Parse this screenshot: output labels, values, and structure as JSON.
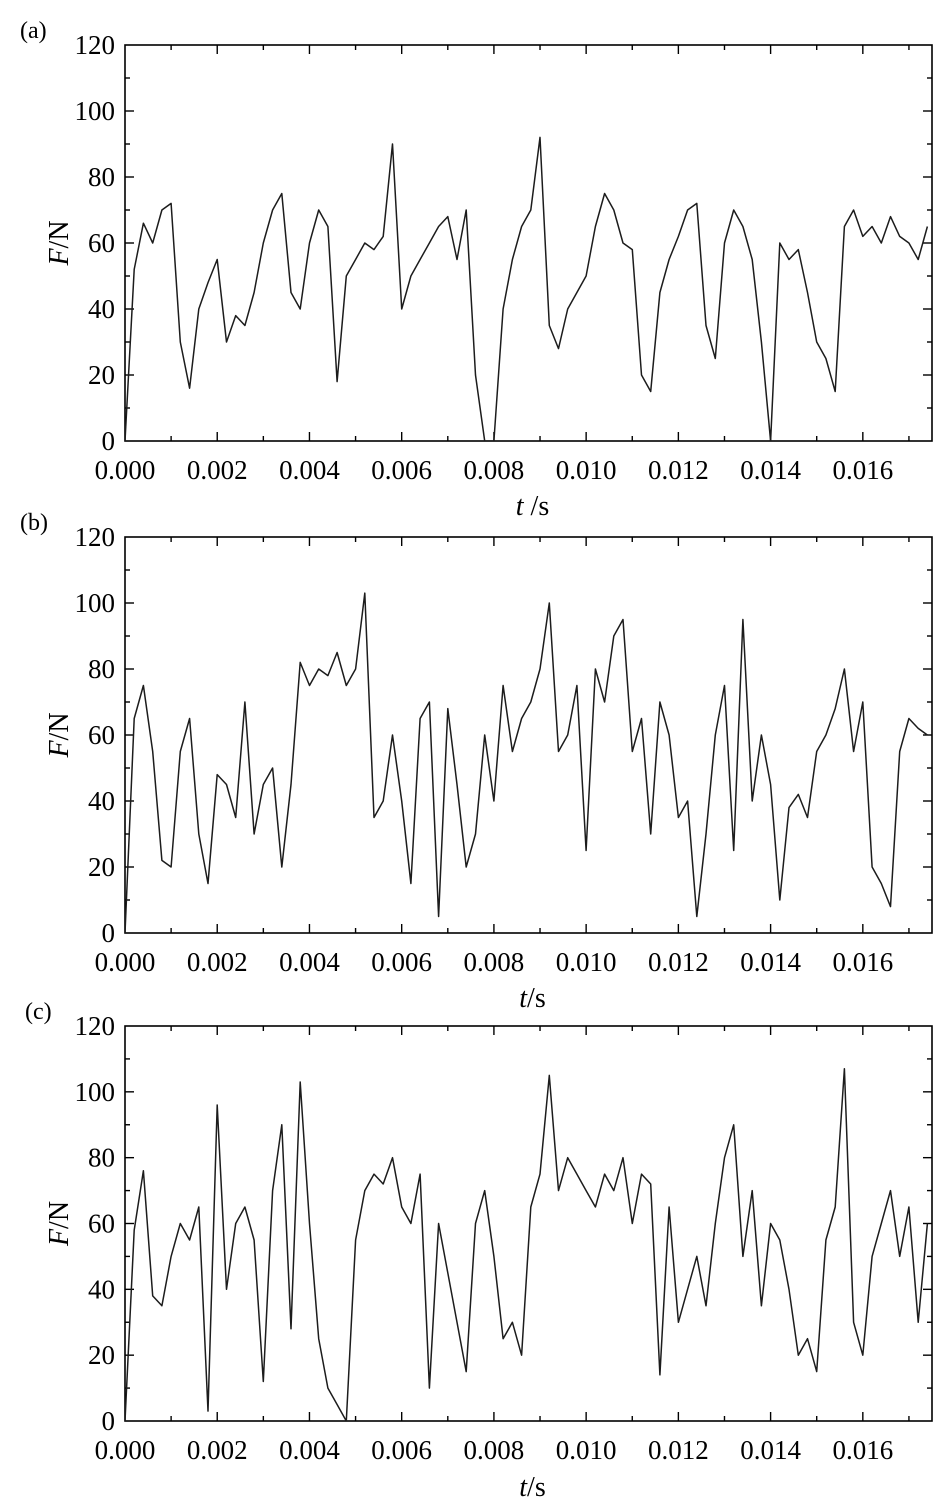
{
  "chart_data": [
    {
      "type": "line",
      "panel_label": "(a)",
      "xlabel_italic": "t",
      "xlabel_rest": " /s",
      "ylabel_italic": "F",
      "ylabel_rest": "/N",
      "xlim": [
        0,
        0.0175
      ],
      "ylim": [
        0,
        120
      ],
      "xticks": [
        "0.000",
        "0.002",
        "0.004",
        "0.006",
        "0.008",
        "0.010",
        "0.012",
        "0.014",
        "0.016"
      ],
      "yticks": [
        "0",
        "20",
        "40",
        "60",
        "80",
        "100",
        "120"
      ],
      "x": [
        0,
        0.0002,
        0.0004,
        0.0006,
        0.0008,
        0.001,
        0.0012,
        0.0014,
        0.0016,
        0.0018,
        0.002,
        0.0022,
        0.0024,
        0.0026,
        0.0028,
        0.003,
        0.0032,
        0.0034,
        0.0036,
        0.0038,
        0.004,
        0.0042,
        0.0044,
        0.0046,
        0.0048,
        0.005,
        0.0052,
        0.0054,
        0.0056,
        0.0058,
        0.006,
        0.0062,
        0.0064,
        0.0066,
        0.0068,
        0.007,
        0.0072,
        0.0074,
        0.0076,
        0.0078,
        0.008,
        0.0082,
        0.0084,
        0.0086,
        0.0088,
        0.009,
        0.0092,
        0.0094,
        0.0096,
        0.0098,
        0.01,
        0.0102,
        0.0104,
        0.0106,
        0.0108,
        0.011,
        0.0112,
        0.0114,
        0.0116,
        0.0118,
        0.012,
        0.0122,
        0.0124,
        0.0126,
        0.0128,
        0.013,
        0.0132,
        0.0134,
        0.0136,
        0.0138,
        0.014,
        0.0142,
        0.0144,
        0.0146,
        0.0148,
        0.015,
        0.0152,
        0.0154,
        0.0156,
        0.0158,
        0.016,
        0.0162,
        0.0164,
        0.0166,
        0.0168,
        0.017,
        0.0172,
        0.0174
      ],
      "values": [
        0,
        52,
        66,
        60,
        70,
        72,
        30,
        16,
        40,
        48,
        55,
        30,
        38,
        35,
        45,
        60,
        70,
        75,
        45,
        40,
        60,
        70,
        65,
        18,
        50,
        55,
        60,
        58,
        62,
        90,
        40,
        50,
        55,
        60,
        65,
        68,
        55,
        70,
        20,
        0,
        0,
        40,
        55,
        65,
        70,
        92,
        35,
        28,
        40,
        45,
        50,
        65,
        75,
        70,
        60,
        58,
        20,
        15,
        45,
        55,
        62,
        70,
        72,
        35,
        25,
        60,
        70,
        65,
        55,
        30,
        0,
        60,
        55,
        58,
        45,
        30,
        25,
        15,
        65,
        70,
        62,
        65,
        60,
        68,
        62,
        60,
        55,
        65
      ]
    },
    {
      "type": "line",
      "panel_label": "(b)",
      "xlabel_italic": "t",
      "xlabel_rest": "/s",
      "ylabel_italic": "F",
      "ylabel_rest": "/N",
      "xlim": [
        0,
        0.0175
      ],
      "ylim": [
        0,
        120
      ],
      "xticks": [
        "0.000",
        "0.002",
        "0.004",
        "0.006",
        "0.008",
        "0.010",
        "0.012",
        "0.014",
        "0.016"
      ],
      "yticks": [
        "0",
        "20",
        "40",
        "60",
        "80",
        "100",
        "120"
      ],
      "x": [
        0,
        0.0002,
        0.0004,
        0.0006,
        0.0008,
        0.001,
        0.0012,
        0.0014,
        0.0016,
        0.0018,
        0.002,
        0.0022,
        0.0024,
        0.0026,
        0.0028,
        0.003,
        0.0032,
        0.0034,
        0.0036,
        0.0038,
        0.004,
        0.0042,
        0.0044,
        0.0046,
        0.0048,
        0.005,
        0.0052,
        0.0054,
        0.0056,
        0.0058,
        0.006,
        0.0062,
        0.0064,
        0.0066,
        0.0068,
        0.007,
        0.0072,
        0.0074,
        0.0076,
        0.0078,
        0.008,
        0.0082,
        0.0084,
        0.0086,
        0.0088,
        0.009,
        0.0092,
        0.0094,
        0.0096,
        0.0098,
        0.01,
        0.0102,
        0.0104,
        0.0106,
        0.0108,
        0.011,
        0.0112,
        0.0114,
        0.0116,
        0.0118,
        0.012,
        0.0122,
        0.0124,
        0.0126,
        0.0128,
        0.013,
        0.0132,
        0.0134,
        0.0136,
        0.0138,
        0.014,
        0.0142,
        0.0144,
        0.0146,
        0.0148,
        0.015,
        0.0152,
        0.0154,
        0.0156,
        0.0158,
        0.016,
        0.0162,
        0.0164,
        0.0166,
        0.0168,
        0.017,
        0.0172,
        0.0174
      ],
      "values": [
        0,
        65,
        75,
        55,
        22,
        20,
        55,
        65,
        30,
        15,
        48,
        45,
        35,
        70,
        30,
        45,
        50,
        20,
        45,
        82,
        75,
        80,
        78,
        85,
        75,
        80,
        103,
        35,
        40,
        60,
        40,
        15,
        65,
        70,
        5,
        68,
        45,
        20,
        30,
        60,
        40,
        75,
        55,
        65,
        70,
        80,
        100,
        55,
        60,
        75,
        25,
        80,
        70,
        90,
        95,
        55,
        65,
        30,
        70,
        60,
        35,
        40,
        5,
        30,
        60,
        75,
        25,
        95,
        40,
        60,
        45,
        10,
        38,
        42,
        35,
        55,
        60,
        68,
        80,
        55,
        70,
        20,
        15,
        8,
        55,
        65,
        62,
        60
      ]
    },
    {
      "type": "line",
      "panel_label": "(c)",
      "xlabel_italic": "t",
      "xlabel_rest": "/s",
      "ylabel_italic": "F",
      "ylabel_rest": "/N",
      "xlim": [
        0,
        0.0175
      ],
      "ylim": [
        0,
        120
      ],
      "xticks": [
        "0.000",
        "0.002",
        "0.004",
        "0.006",
        "0.008",
        "0.010",
        "0.012",
        "0.014",
        "0.016"
      ],
      "yticks": [
        "0",
        "20",
        "40",
        "60",
        "80",
        "100",
        "120"
      ],
      "x": [
        0,
        0.0002,
        0.0004,
        0.0006,
        0.0008,
        0.001,
        0.0012,
        0.0014,
        0.0016,
        0.0018,
        0.002,
        0.0022,
        0.0024,
        0.0026,
        0.0028,
        0.003,
        0.0032,
        0.0034,
        0.0036,
        0.0038,
        0.004,
        0.0042,
        0.0044,
        0.0046,
        0.0048,
        0.005,
        0.0052,
        0.0054,
        0.0056,
        0.0058,
        0.006,
        0.0062,
        0.0064,
        0.0066,
        0.0068,
        0.007,
        0.0072,
        0.0074,
        0.0076,
        0.0078,
        0.008,
        0.0082,
        0.0084,
        0.0086,
        0.0088,
        0.009,
        0.0092,
        0.0094,
        0.0096,
        0.0098,
        0.01,
        0.0102,
        0.0104,
        0.0106,
        0.0108,
        0.011,
        0.0112,
        0.0114,
        0.0116,
        0.0118,
        0.012,
        0.0122,
        0.0124,
        0.0126,
        0.0128,
        0.013,
        0.0132,
        0.0134,
        0.0136,
        0.0138,
        0.014,
        0.0142,
        0.0144,
        0.0146,
        0.0148,
        0.015,
        0.0152,
        0.0154,
        0.0156,
        0.0158,
        0.016,
        0.0162,
        0.0164,
        0.0166,
        0.0168,
        0.017,
        0.0172,
        0.0174
      ],
      "values": [
        0,
        58,
        76,
        38,
        35,
        50,
        60,
        55,
        65,
        3,
        96,
        40,
        60,
        65,
        55,
        12,
        70,
        90,
        28,
        103,
        60,
        25,
        10,
        5,
        0,
        55,
        70,
        75,
        72,
        80,
        65,
        60,
        75,
        10,
        60,
        45,
        30,
        15,
        60,
        70,
        50,
        25,
        30,
        20,
        65,
        75,
        105,
        70,
        80,
        75,
        70,
        65,
        75,
        70,
        80,
        60,
        75,
        72,
        14,
        65,
        30,
        40,
        50,
        35,
        60,
        80,
        90,
        50,
        70,
        35,
        60,
        55,
        40,
        20,
        25,
        15,
        55,
        65,
        107,
        30,
        20,
        50,
        60,
        70,
        50,
        65,
        30,
        60
      ]
    }
  ]
}
